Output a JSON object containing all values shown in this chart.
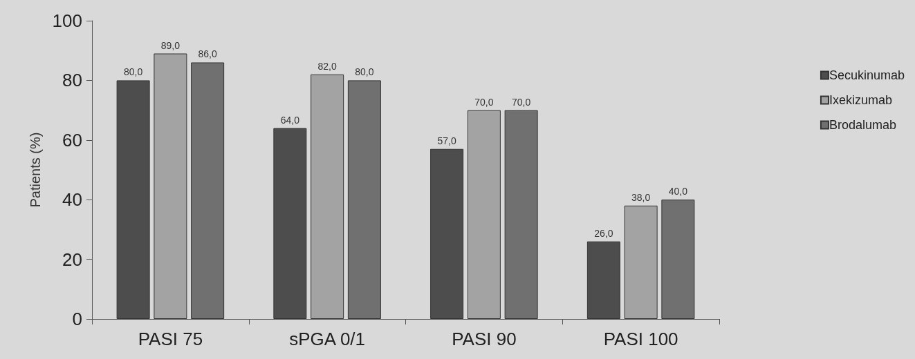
{
  "chart_data": {
    "type": "bar",
    "ylabel": "Patients (%)",
    "categories": [
      "PASI 75",
      "sPGA 0/1",
      "PASI 90",
      "PASI 100"
    ],
    "series": [
      {
        "name": "Secukinumab",
        "color": "#4d4d4d",
        "values": [
          80,
          64,
          57,
          26
        ],
        "value_labels": [
          "80,0",
          "64,0",
          "57,0",
          "26,0"
        ]
      },
      {
        "name": "Ixekizumab",
        "color": "#a3a3a3",
        "values": [
          89,
          82,
          70,
          38
        ],
        "value_labels": [
          "89,0",
          "82,0",
          "70,0",
          "38,0"
        ]
      },
      {
        "name": "Brodalumab",
        "color": "#707070",
        "values": [
          86,
          80,
          70,
          40
        ],
        "value_labels": [
          "86,0",
          "80,0",
          "70,0",
          "40,0"
        ]
      }
    ],
    "ylim": [
      0,
      100
    ],
    "yticks": [
      0,
      20,
      40,
      60,
      80,
      100
    ],
    "grid": false,
    "legend": "right"
  }
}
